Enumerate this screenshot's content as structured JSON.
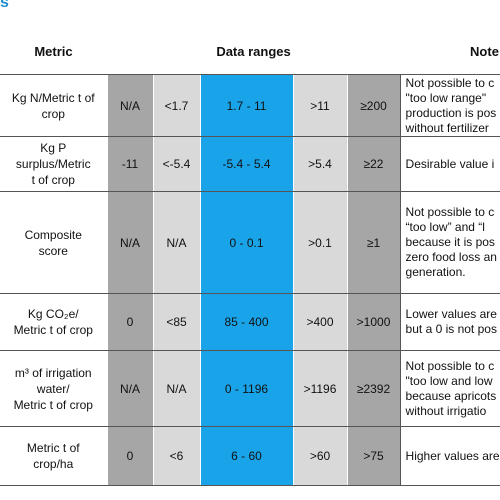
{
  "header": {
    "fragment": "s",
    "metric": "Metric",
    "ranges": "Data ranges",
    "notes": "Note"
  },
  "table": {
    "rows": [
      {
        "metric": [
          "Kg N/Metric t of",
          "crop"
        ],
        "ranges": [
          "N/A",
          "<1.7",
          "1.7 - 11",
          ">11",
          "≥200"
        ],
        "notes": [
          "Not possible to c",
          "\"too low range\"",
          "production is pos",
          "without fertilizer"
        ]
      },
      {
        "metric": [
          "Kg P",
          "surplus/Metric",
          "t of crop"
        ],
        "ranges": [
          "-11",
          "<-5.4",
          "-5.4 - 5.4",
          ">5.4",
          "≥22"
        ],
        "notes": [
          "Desirable value i"
        ]
      },
      {
        "metric": [
          "Composite",
          "score"
        ],
        "ranges": [
          "N/A",
          "N/A",
          "0 - 0.1",
          ">0.1",
          "≥1"
        ],
        "notes": [
          "Not possible to c",
          "“too low” and “l",
          "because it is pos",
          "zero food loss an",
          "generation."
        ]
      },
      {
        "metric": [
          "Kg CO₂e/",
          "Metric t of crop"
        ],
        "ranges": [
          "0",
          "<85",
          "85 - 400",
          ">400",
          ">1000"
        ],
        "notes": [
          "Lower values are",
          "but a 0 is not pos"
        ]
      },
      {
        "metric": [
          "m³ of irrigation",
          "water/",
          "Metric t of crop"
        ],
        "ranges": [
          "N/A",
          "N/A",
          "0 - 1196",
          ">1196",
          "≥2392"
        ],
        "notes": [
          "Not possible to c",
          "\"too low and low",
          "because apricots",
          "without irrigatio"
        ]
      },
      {
        "metric": [
          "Metric t of",
          "crop/ha"
        ],
        "ranges": [
          "0",
          "<6",
          "6 - 60",
          ">60",
          ">75"
        ],
        "notes": [
          "Higher values are"
        ]
      }
    ]
  }
}
